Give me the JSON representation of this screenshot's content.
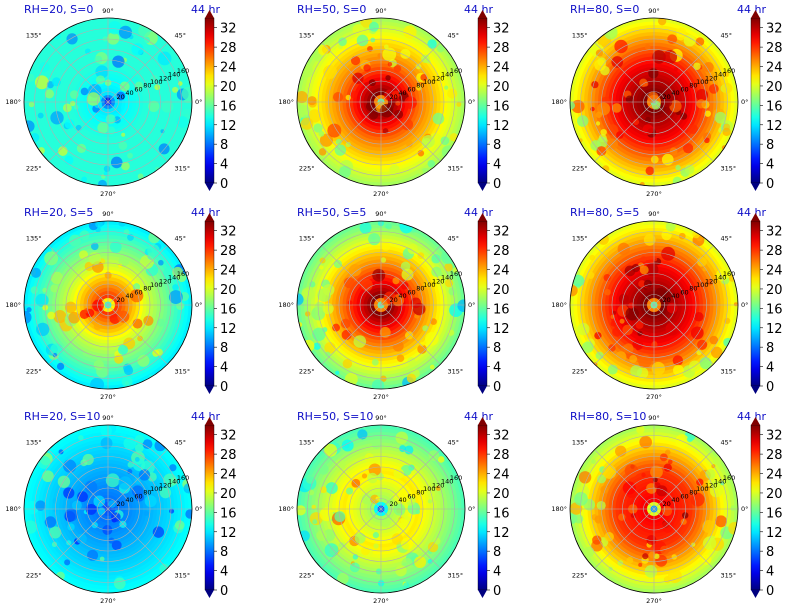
{
  "colors": {
    "title": "#1010c8",
    "grid": "#b0b0b0",
    "outline": "#000000"
  },
  "chart_data": {
    "type": "heatmap",
    "projection": "polar",
    "colormap": "jet",
    "color_range": [
      0,
      34
    ],
    "colorbar_ticks": [
      "0",
      "4",
      "8",
      "12",
      "16",
      "20",
      "24",
      "28",
      "32"
    ],
    "colorbar_extend": "both",
    "angle_ticks": [
      "0°",
      "45°",
      "90°",
      "135°",
      "180°",
      "225°",
      "270°",
      "315°"
    ],
    "radial_ticks": [
      "20",
      "40",
      "60",
      "80",
      "100",
      "120",
      "140",
      "160"
    ],
    "radial_label_angle_deg": 22.5,
    "grid": true,
    "time_label": "44 hr",
    "panels": [
      {
        "title": "RH=20, S=0",
        "core": 12,
        "ring": 14,
        "outer": 14,
        "eye": 4
      },
      {
        "title": "RH=50, S=0",
        "core": 34,
        "ring": 26,
        "outer": 18,
        "eye": 11
      },
      {
        "title": "RH=80, S=0",
        "core": 34,
        "ring": 30,
        "outer": 20,
        "eye": 11
      },
      {
        "title": "RH=20, S=5",
        "core": 28,
        "ring": 20,
        "outer": 12,
        "eye": 11
      },
      {
        "title": "RH=50, S=5",
        "core": 34,
        "ring": 26,
        "outer": 16,
        "eye": 11
      },
      {
        "title": "RH=80, S=5",
        "core": 34,
        "ring": 30,
        "outer": 20,
        "eye": 11
      },
      {
        "title": "RH=20, S=10",
        "core": 8,
        "ring": 10,
        "outer": 13,
        "eye": 6
      },
      {
        "title": "RH=50, S=10",
        "core": 18,
        "ring": 22,
        "outer": 15,
        "eye": 4
      },
      {
        "title": "RH=80, S=10",
        "core": 30,
        "ring": 28,
        "outer": 18,
        "eye": 4
      }
    ]
  }
}
